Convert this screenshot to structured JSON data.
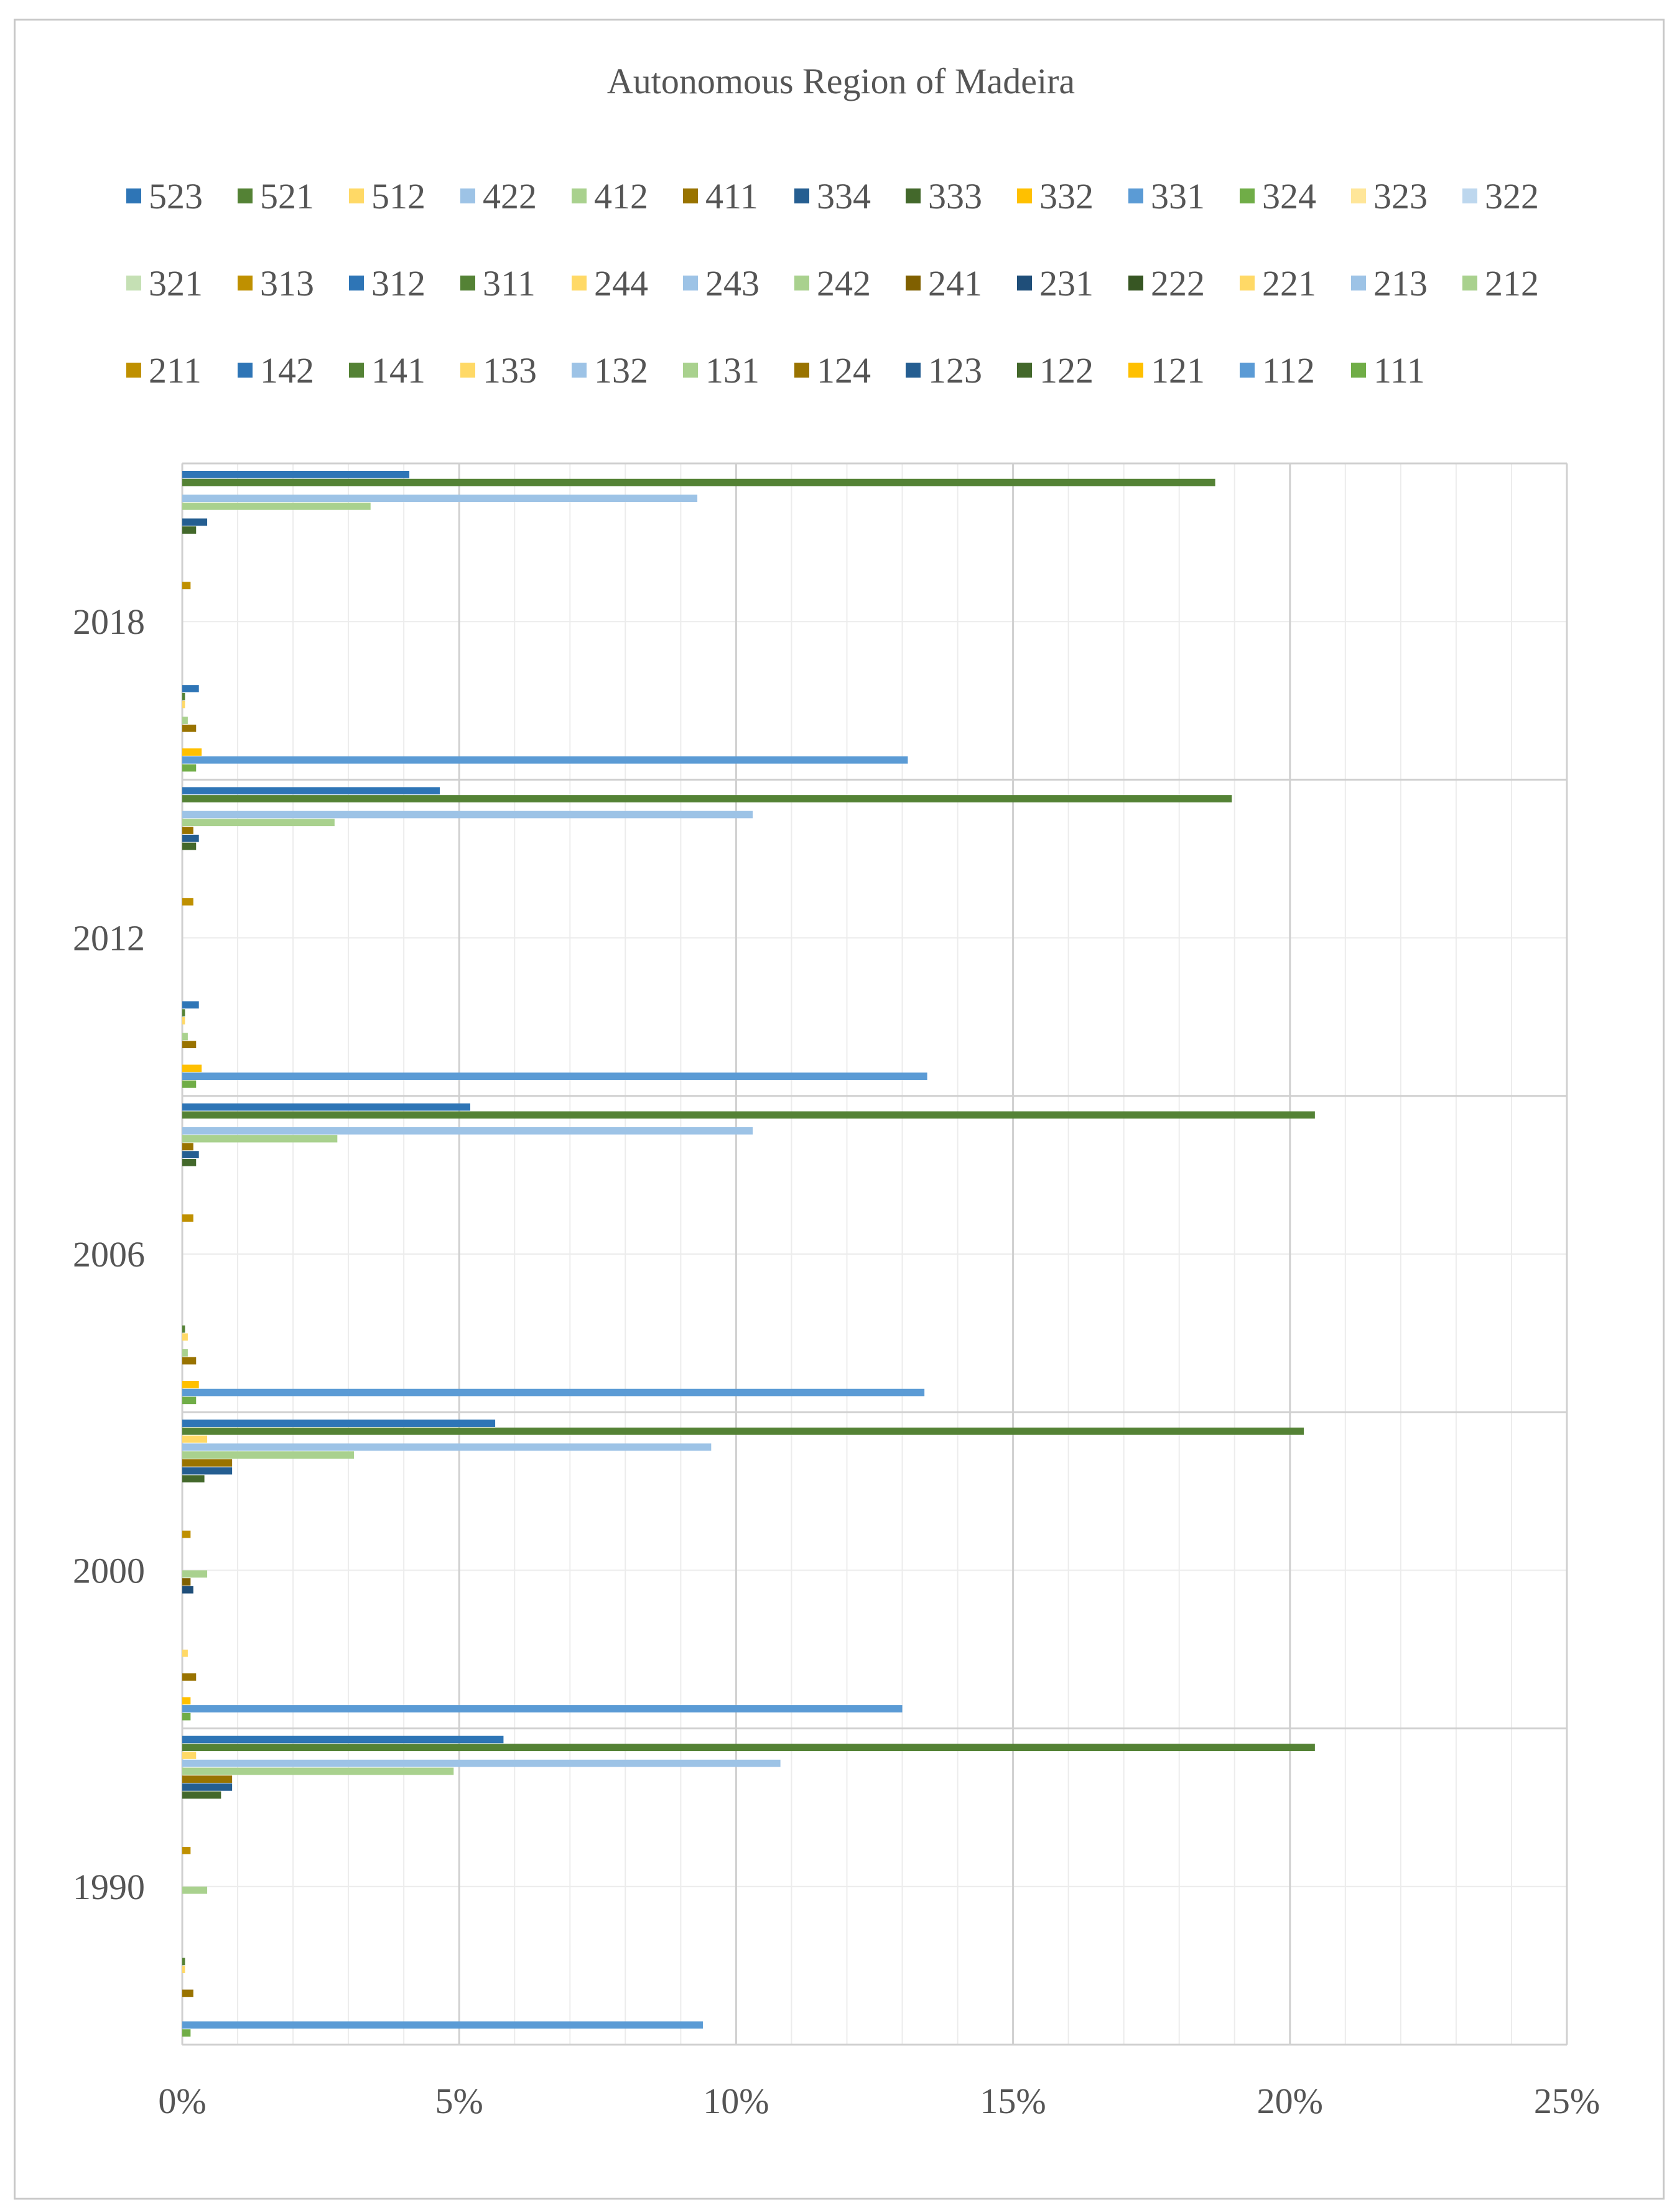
{
  "chart_data": {
    "type": "bar",
    "orientation": "horizontal",
    "title": "Autonomous Region of Madeira",
    "xlabel": "",
    "ylabel": "",
    "xlim": [
      0,
      25
    ],
    "x_ticks": [
      "0%",
      "5%",
      "10%",
      "15%",
      "20%",
      "25%"
    ],
    "categories": [
      "1990",
      "2000",
      "2006",
      "2012",
      "2018"
    ],
    "legend_position": "top",
    "grid": true,
    "series": [
      {
        "name": "111",
        "color": "#70AD47",
        "values": [
          0.15,
          0.15,
          0.25,
          0.25,
          0.25
        ]
      },
      {
        "name": "112",
        "color": "#5B9BD5",
        "values": [
          9.4,
          13.0,
          13.4,
          13.45,
          13.1
        ]
      },
      {
        "name": "121",
        "color": "#FFC000",
        "values": [
          0.0,
          0.15,
          0.3,
          0.35,
          0.35
        ]
      },
      {
        "name": "122",
        "color": "#43682B",
        "values": [
          0.0,
          0.0,
          0.0,
          0.0,
          0.0
        ]
      },
      {
        "name": "123",
        "color": "#255E91",
        "values": [
          0.0,
          0.0,
          0.0,
          0.0,
          0.0
        ]
      },
      {
        "name": "124",
        "color": "#997300",
        "values": [
          0.2,
          0.25,
          0.25,
          0.25,
          0.25
        ]
      },
      {
        "name": "131",
        "color": "#A9D18E",
        "values": [
          0.0,
          0.0,
          0.1,
          0.1,
          0.1
        ]
      },
      {
        "name": "132",
        "color": "#9DC3E6",
        "values": [
          0.0,
          0.0,
          0.0,
          0.0,
          0.0
        ]
      },
      {
        "name": "133",
        "color": "#FFD966",
        "values": [
          0.05,
          0.1,
          0.1,
          0.05,
          0.05
        ]
      },
      {
        "name": "141",
        "color": "#548235",
        "values": [
          0.05,
          0.0,
          0.05,
          0.05,
          0.05
        ]
      },
      {
        "name": "142",
        "color": "#2E75B6",
        "values": [
          0.0,
          0.0,
          0.0,
          0.3,
          0.3
        ]
      },
      {
        "name": "211",
        "color": "#BF9000",
        "values": [
          0.0,
          0.0,
          0.0,
          0.0,
          0.0
        ]
      },
      {
        "name": "212",
        "color": "#A9D18E",
        "values": [
          0.0,
          0.0,
          0.0,
          0.0,
          0.0
        ]
      },
      {
        "name": "213",
        "color": "#9DC3E6",
        "values": [
          0.0,
          0.0,
          0.0,
          0.0,
          0.0
        ]
      },
      {
        "name": "221",
        "color": "#FFD966",
        "values": [
          0.0,
          0.0,
          0.0,
          0.0,
          0.0
        ]
      },
      {
        "name": "222",
        "color": "#375623",
        "values": [
          0.0,
          0.0,
          0.0,
          0.0,
          0.0
        ]
      },
      {
        "name": "231",
        "color": "#1F4E79",
        "values": [
          0.0,
          0.2,
          0.0,
          0.0,
          0.0
        ]
      },
      {
        "name": "241",
        "color": "#806000",
        "values": [
          0.0,
          0.15,
          0.0,
          0.0,
          0.0
        ]
      },
      {
        "name": "242",
        "color": "#A9D18E",
        "values": [
          0.45,
          0.45,
          0.0,
          0.0,
          0.0
        ]
      },
      {
        "name": "243",
        "color": "#9DC3E6",
        "values": [
          0.0,
          0.0,
          0.0,
          0.0,
          0.0
        ]
      },
      {
        "name": "244",
        "color": "#FFD966",
        "values": [
          0.0,
          0.0,
          0.0,
          0.0,
          0.0
        ]
      },
      {
        "name": "311",
        "color": "#548235",
        "values": [
          0.0,
          0.0,
          0.0,
          0.0,
          0.0
        ]
      },
      {
        "name": "312",
        "color": "#2E75B6",
        "values": [
          0.0,
          0.0,
          0.0,
          0.0,
          0.0
        ]
      },
      {
        "name": "313",
        "color": "#BF9000",
        "values": [
          0.15,
          0.15,
          0.2,
          0.2,
          0.15
        ]
      },
      {
        "name": "321",
        "color": "#C5E0B4",
        "values": [
          0.0,
          0.0,
          0.0,
          0.0,
          0.0
        ]
      },
      {
        "name": "322",
        "color": "#BDD7EE",
        "values": [
          0.0,
          0.0,
          0.0,
          0.0,
          0.0
        ]
      },
      {
        "name": "323",
        "color": "#FFE699",
        "values": [
          0.0,
          0.0,
          0.0,
          0.0,
          0.0
        ]
      },
      {
        "name": "324",
        "color": "#70AD47",
        "values": [
          0.0,
          0.0,
          0.0,
          0.0,
          0.0
        ]
      },
      {
        "name": "331",
        "color": "#5B9BD5",
        "values": [
          0.0,
          0.0,
          0.0,
          0.0,
          0.0
        ]
      },
      {
        "name": "332",
        "color": "#FFC000",
        "values": [
          0.0,
          0.0,
          0.0,
          0.0,
          0.0
        ]
      },
      {
        "name": "333",
        "color": "#43682B",
        "values": [
          0.7,
          0.4,
          0.25,
          0.25,
          0.25
        ]
      },
      {
        "name": "334",
        "color": "#255E91",
        "values": [
          0.9,
          0.9,
          0.3,
          0.3,
          0.45
        ]
      },
      {
        "name": "411",
        "color": "#997300",
        "values": [
          0.9,
          0.9,
          0.2,
          0.2,
          0.0
        ]
      },
      {
        "name": "412",
        "color": "#A9D18E",
        "values": [
          4.9,
          3.1,
          2.8,
          2.75,
          3.4
        ]
      },
      {
        "name": "422",
        "color": "#9DC3E6",
        "values": [
          10.8,
          9.55,
          10.3,
          10.3,
          9.3
        ]
      },
      {
        "name": "512",
        "color": "#FFD966",
        "values": [
          0.25,
          0.45,
          0.0,
          0.0,
          0.0
        ]
      },
      {
        "name": "521",
        "color": "#548235",
        "values": [
          20.45,
          20.25,
          20.45,
          18.95,
          18.65
        ]
      },
      {
        "name": "523",
        "color": "#2E75B6",
        "values": [
          5.8,
          5.65,
          5.2,
          4.65,
          4.1
        ]
      }
    ]
  }
}
